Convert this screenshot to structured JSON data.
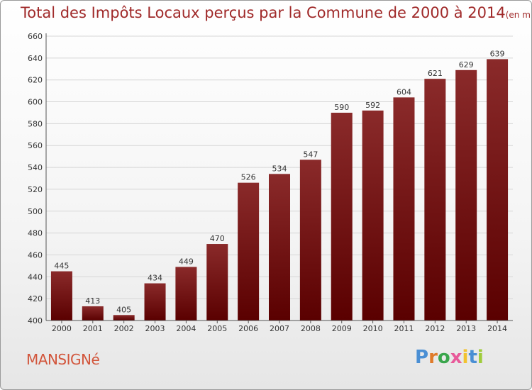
{
  "chart_data": {
    "type": "bar",
    "title": "Total des Impôts Locaux perçus par la Commune de 2000 à 2014",
    "unit_note": "(en milliers d'€)",
    "categories": [
      "2000",
      "2001",
      "2002",
      "2003",
      "2004",
      "2005",
      "2006",
      "2007",
      "2008",
      "2009",
      "2010",
      "2011",
      "2012",
      "2013",
      "2014"
    ],
    "values": [
      445,
      413,
      405,
      434,
      449,
      470,
      526,
      534,
      547,
      590,
      592,
      604,
      621,
      629,
      639
    ],
    "ylim": [
      400,
      660
    ],
    "yticks": [
      400,
      420,
      440,
      460,
      480,
      500,
      520,
      540,
      560,
      580,
      600,
      620,
      640,
      660
    ],
    "grid": "horizontal",
    "bar_color_top": "#8a2a2a",
    "bar_color_bottom": "#5a0000"
  },
  "footer": {
    "commune_name": "MANSIGNé",
    "brand": "Proxiti",
    "brand_colors": [
      "#4a8fd4",
      "#e07b2a",
      "#3aa64c",
      "#e85a9a",
      "#f2c230",
      "#4a8fd4",
      "#9fcc3b"
    ]
  }
}
